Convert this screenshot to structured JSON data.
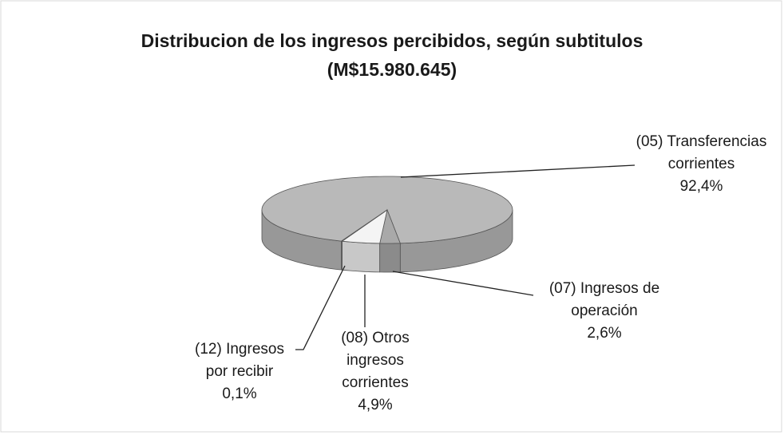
{
  "chart_data": {
    "type": "pie",
    "title": "Distribucion de los ingresos percibidos, según subtitulos",
    "subtitle": "(M$15.980.645)",
    "categories": [
      "(05) Transferencias corrientes",
      "(07) Ingresos de operación",
      "(08) Otros ingresos corrientes",
      "(12) Ingresos por recibir"
    ],
    "values": [
      92.4,
      2.6,
      4.9,
      0.1
    ],
    "value_labels": [
      "92,4%",
      "2,6%",
      "4,9%",
      "0,1%"
    ],
    "colors": [
      "#b9b9b9",
      "#a9a9a9",
      "#f4f4f4",
      "#d6d6d6"
    ],
    "three_d": true
  }
}
